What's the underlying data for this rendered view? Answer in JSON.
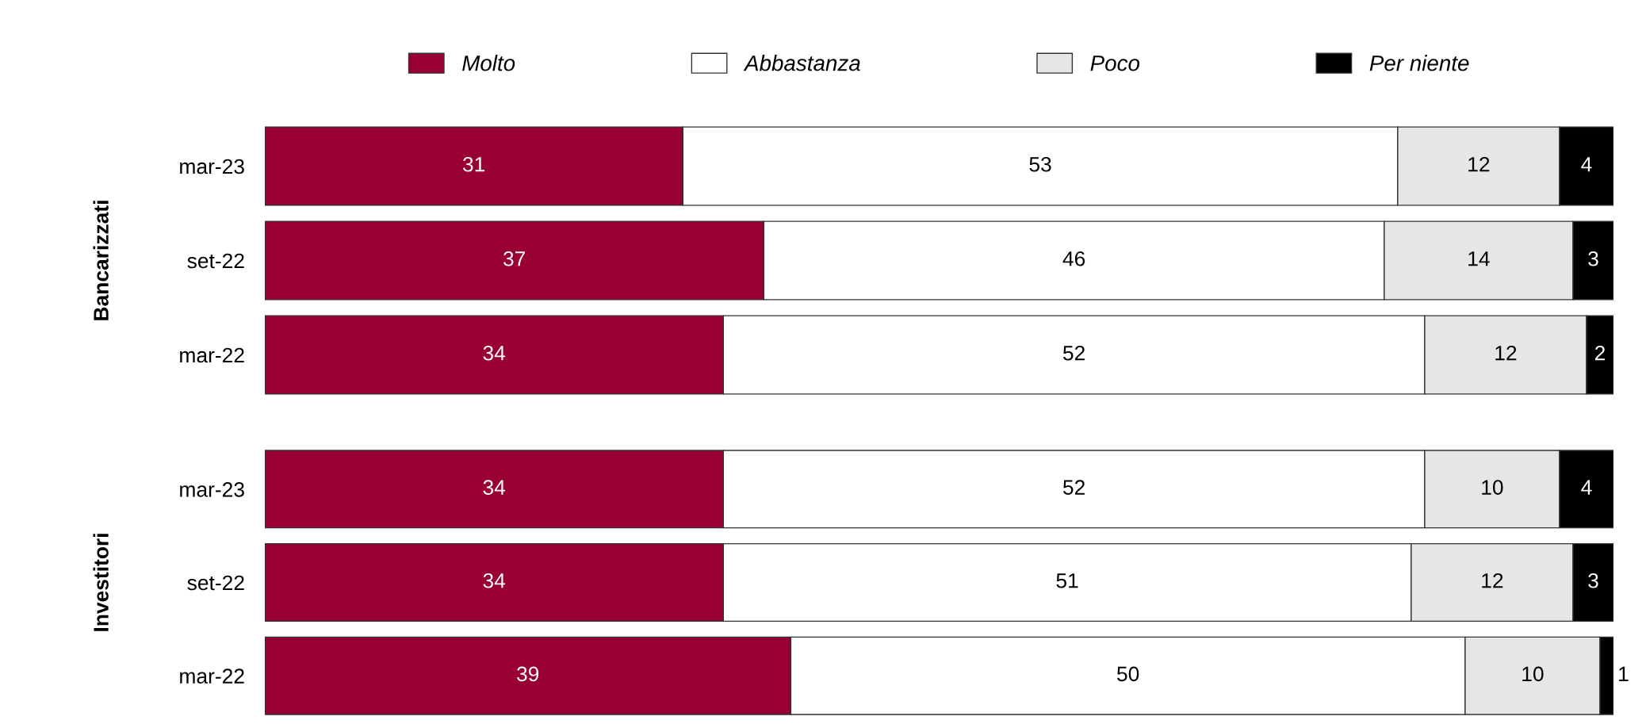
{
  "chart_data": [
    {
      "type": "bar",
      "orientation": "horizontal",
      "stacked": true,
      "ylabel": "Bancarizzati",
      "categories": [
        "mar-23",
        "set-22",
        "mar-22"
      ],
      "xlim": [
        0,
        100
      ],
      "tick_labels": "y",
      "legend": "top",
      "data_labels": true,
      "grid": false,
      "series": [
        {
          "name": "Molto",
          "color": "#990033",
          "values": [
            31,
            37,
            34
          ]
        },
        {
          "name": "Abbastanza",
          "color": "#ffffff",
          "values": [
            53,
            46,
            52
          ]
        },
        {
          "name": "Poco",
          "color": "#e6e6e6",
          "values": [
            12,
            14,
            12
          ]
        },
        {
          "name": "Per niente",
          "color": "#000000",
          "values": [
            4,
            3,
            2
          ]
        }
      ]
    },
    {
      "type": "bar",
      "orientation": "horizontal",
      "stacked": true,
      "ylabel": "Investitori",
      "categories": [
        "mar-23",
        "set-22",
        "mar-22"
      ],
      "xlim": [
        0,
        100
      ],
      "tick_labels": "y",
      "data_labels": true,
      "grid": false,
      "series": [
        {
          "color": "#990033",
          "values": [
            34,
            34,
            39
          ]
        },
        {
          "color": "#ffffff",
          "values": [
            52,
            51,
            50
          ]
        },
        {
          "color": "#e6e6e6",
          "values": [
            10,
            12,
            10
          ]
        },
        {
          "color": "#000000",
          "values": [
            4,
            3,
            1
          ]
        }
      ]
    }
  ]
}
